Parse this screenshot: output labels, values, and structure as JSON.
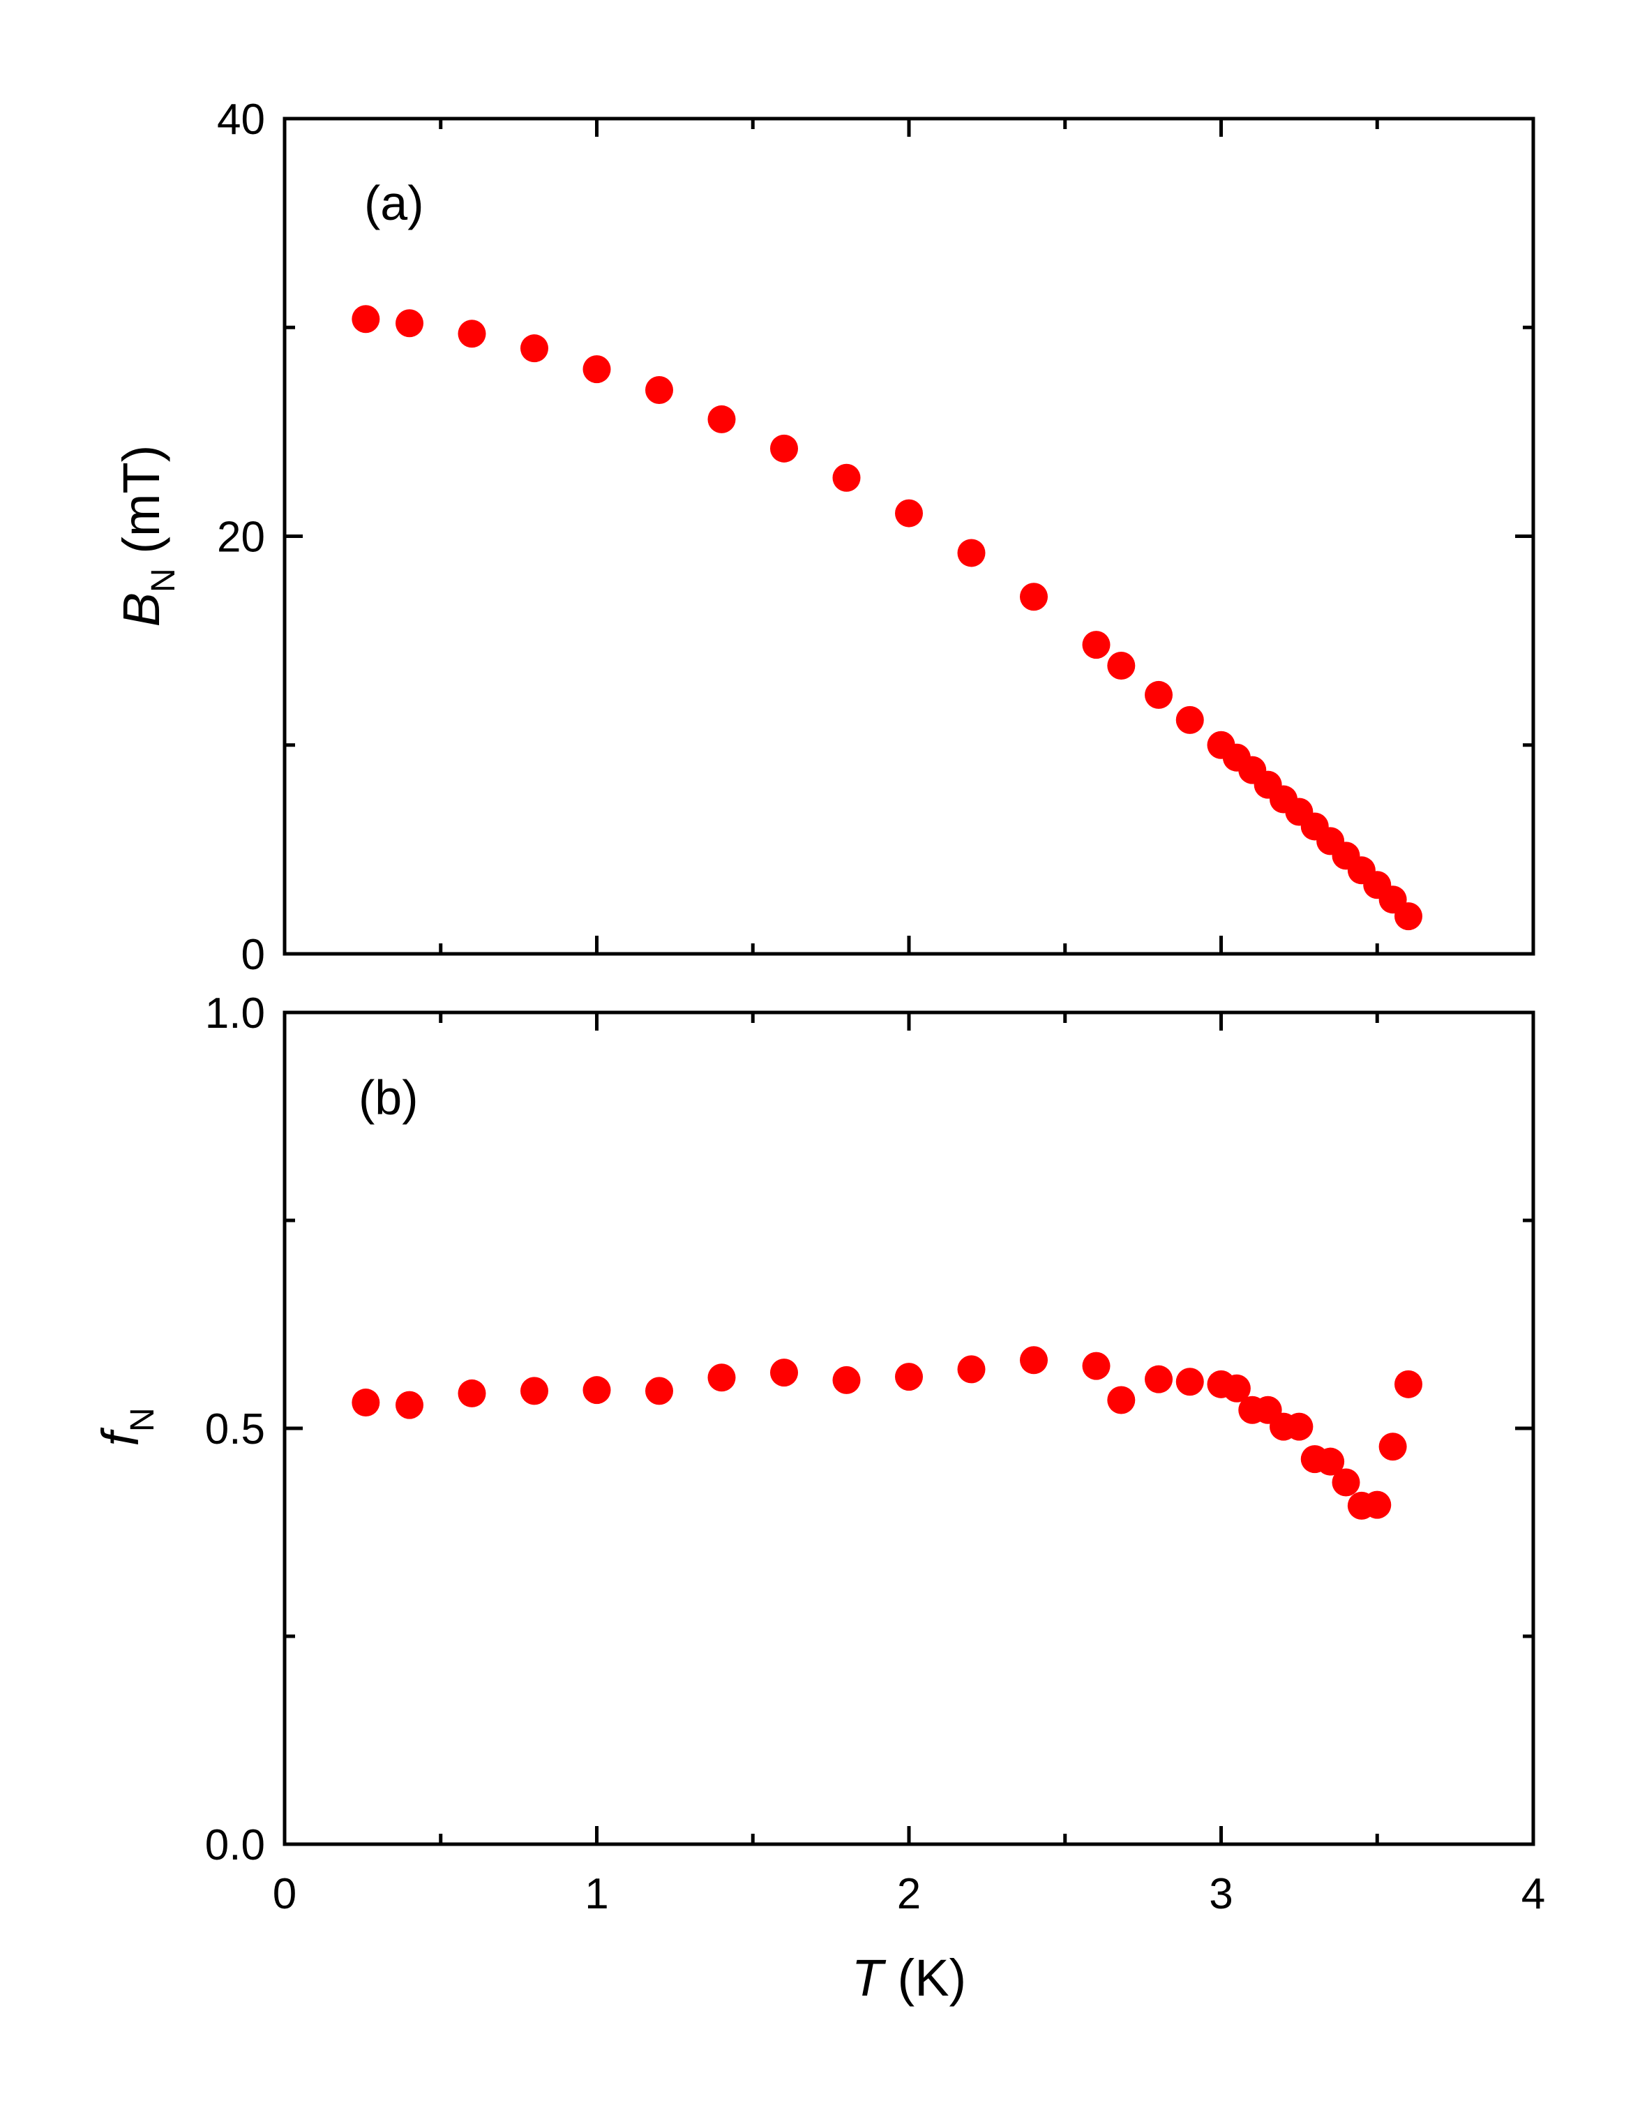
{
  "colors": {
    "marker": "#ff0000",
    "axis": "#000000",
    "background": "#ffffff"
  },
  "chart_data": [
    {
      "type": "scatter",
      "panel": "(a)",
      "xlabel_italic": "T",
      "xlabel_rest": " (K)",
      "ylabel_italic": "B",
      "ylabel_sub": "N",
      "ylabel_rest": " (mT)",
      "xlim": [
        0,
        4
      ],
      "ylim": [
        0,
        40
      ],
      "xticks": [
        "0",
        "1",
        "2",
        "3",
        "4"
      ],
      "yticks": [
        "0",
        "20",
        "40"
      ],
      "series": [
        {
          "name": "B_N",
          "x": [
            0.26,
            0.4,
            0.6,
            0.8,
            1.0,
            1.2,
            1.4,
            1.6,
            1.8,
            2.0,
            2.2,
            2.4,
            2.6,
            2.68,
            2.8,
            2.9,
            3.0,
            3.05,
            3.1,
            3.15,
            3.2,
            3.25,
            3.3,
            3.35,
            3.4,
            3.45,
            3.5,
            3.55,
            3.6
          ],
          "y": [
            30.4,
            30.2,
            29.7,
            29.0,
            28.0,
            27.0,
            25.6,
            24.2,
            22.8,
            21.1,
            19.2,
            17.1,
            14.8,
            13.8,
            12.4,
            11.2,
            10.0,
            9.4,
            8.8,
            8.1,
            7.4,
            6.8,
            6.1,
            5.4,
            4.7,
            4.0,
            3.3,
            2.6,
            1.8
          ]
        }
      ]
    },
    {
      "type": "scatter",
      "panel": "(b)",
      "xlabel_italic": "T",
      "xlabel_rest": " (K)",
      "ylabel_italic": "f",
      "ylabel_sub": "N",
      "ylabel_rest": "",
      "xlim": [
        0,
        4
      ],
      "ylim": [
        0.0,
        1.0
      ],
      "xticks": [
        "0",
        "1",
        "2",
        "3",
        "4"
      ],
      "yticks": [
        "0.0",
        "0.5",
        "1.0"
      ],
      "series": [
        {
          "name": "f_N",
          "x": [
            0.26,
            0.4,
            0.6,
            0.8,
            1.0,
            1.2,
            1.4,
            1.6,
            1.8,
            2.0,
            2.2,
            2.4,
            2.6,
            2.68,
            2.8,
            2.9,
            3.0,
            3.05,
            3.1,
            3.15,
            3.2,
            3.25,
            3.3,
            3.35,
            3.4,
            3.45,
            3.5,
            3.55,
            3.6
          ],
          "y": [
            0.531,
            0.528,
            0.542,
            0.545,
            0.546,
            0.545,
            0.561,
            0.567,
            0.558,
            0.562,
            0.571,
            0.582,
            0.575,
            0.534,
            0.559,
            0.556,
            0.553,
            0.548,
            0.522,
            0.522,
            0.502,
            0.502,
            0.463,
            0.46,
            0.435,
            0.407,
            0.408,
            0.478,
            0.553
          ]
        }
      ]
    }
  ]
}
